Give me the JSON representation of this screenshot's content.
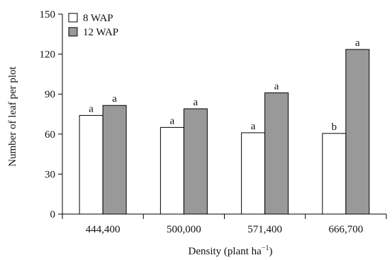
{
  "chart_data": {
    "type": "bar",
    "title": "",
    "xlabel": "Density (plant ha",
    "xlabel_superscript": "−1",
    "xlabel_suffix": ")",
    "ylabel": "Number of leaf per plot",
    "categories": [
      "444,400",
      "500,000",
      "571,400",
      "666,700"
    ],
    "ylim": [
      0,
      150
    ],
    "yticks": [
      0,
      30,
      60,
      90,
      120,
      150
    ],
    "legend_position": "top-left",
    "grid": false,
    "series": [
      {
        "name": "8 WAP",
        "color": "#ffffff",
        "values": [
          74,
          65,
          61,
          60.5
        ],
        "labels": [
          "a",
          "a",
          "a",
          "b"
        ]
      },
      {
        "name": "12 WAP",
        "color": "#999999",
        "values": [
          81.5,
          79,
          91,
          123.5
        ],
        "labels": [
          "a",
          "a",
          "a",
          "a"
        ]
      }
    ]
  }
}
